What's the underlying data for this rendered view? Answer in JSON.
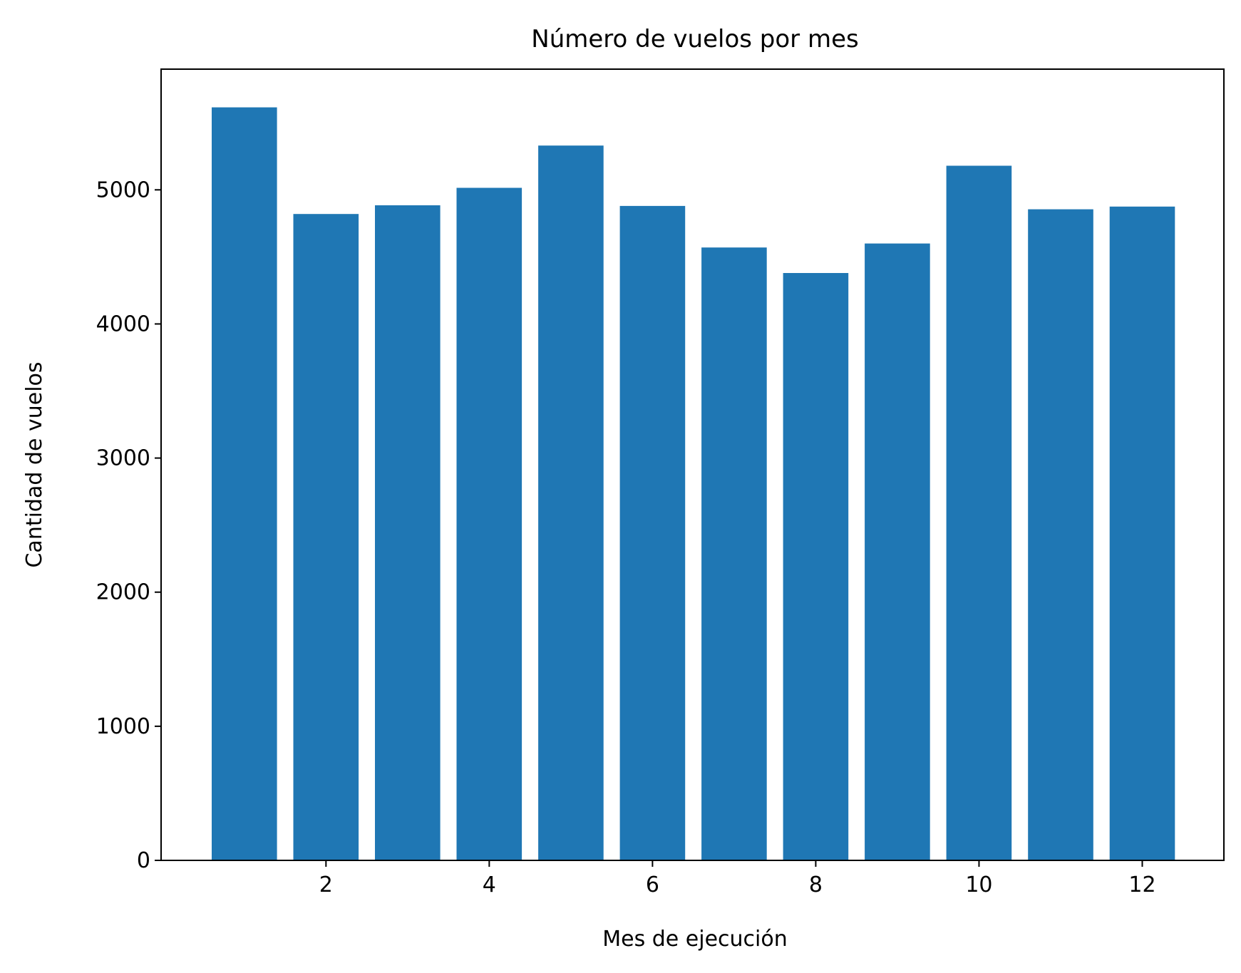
{
  "chart_data": {
    "type": "bar",
    "title": "Número de vuelos por mes",
    "xlabel": "Mes de ejecución",
    "ylabel": "Cantidad de vuelos",
    "categories": [
      1,
      2,
      3,
      4,
      5,
      6,
      7,
      8,
      9,
      10,
      11,
      12
    ],
    "values": [
      5615,
      4820,
      4885,
      5015,
      5330,
      4880,
      4570,
      4380,
      4600,
      5180,
      4855,
      4875
    ],
    "xlim": [
      -0.02,
      13.0
    ],
    "ylim": [
      0,
      5900
    ],
    "xticks": [
      2,
      4,
      6,
      8,
      10,
      12
    ],
    "yticks": [
      0,
      1000,
      2000,
      3000,
      4000,
      5000
    ],
    "bar_width": 0.8,
    "bar_color": "#1f77b4",
    "grid": false,
    "legend": "none"
  }
}
